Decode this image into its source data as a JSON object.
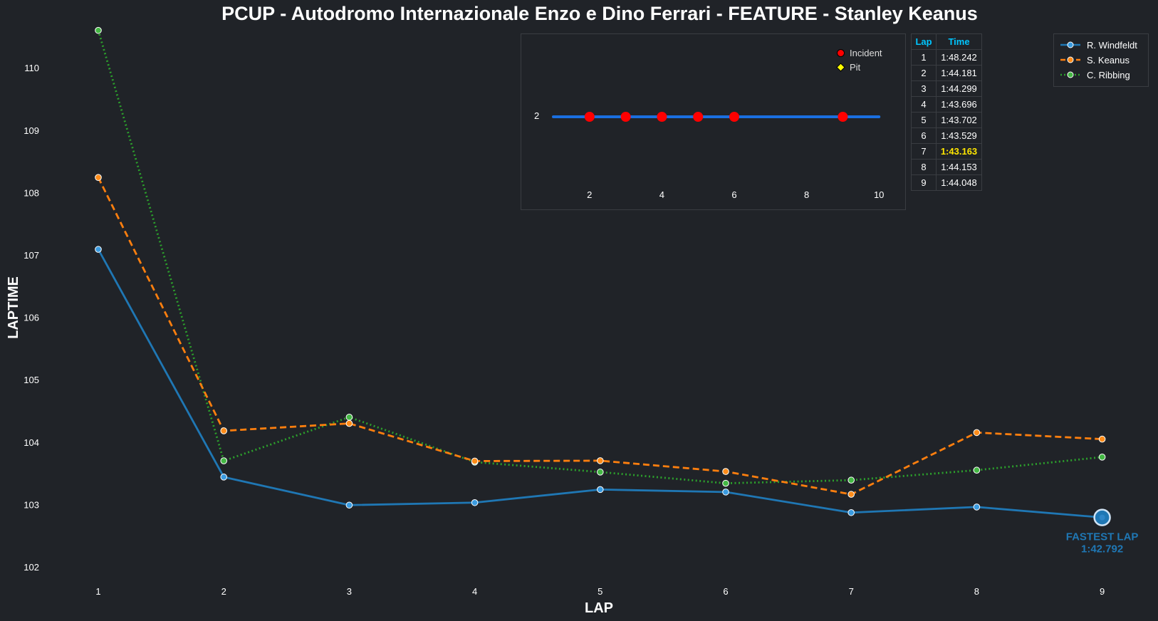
{
  "chart_data": {
    "type": "line",
    "title": "PCUP - Autodromo Internazionale Enzo e Dino Ferrari - FEATURE - Stanley Keanus",
    "xlabel": "LAP",
    "ylabel": "LAPTIME",
    "x": [
      1,
      2,
      3,
      4,
      5,
      6,
      7,
      8,
      9
    ],
    "ylim": [
      101.8,
      110.6
    ],
    "yticks": [
      102,
      103,
      104,
      105,
      106,
      107,
      108,
      109,
      110
    ],
    "series": [
      {
        "name": "R. Windfeldt",
        "color": "#1f77b4",
        "dash": "solid",
        "marker_fill": "#3a9be0",
        "values": [
          107.09,
          103.44,
          102.99,
          103.03,
          103.24,
          103.2,
          102.87,
          102.96,
          102.792
        ]
      },
      {
        "name": "S. Keanus",
        "color": "#ff7f0e",
        "dash": "dashed",
        "marker_fill": "#ff8c1a",
        "values": [
          108.242,
          104.181,
          104.299,
          103.696,
          103.702,
          103.529,
          103.163,
          104.153,
          104.048
        ]
      },
      {
        "name": "C. Ribbing",
        "color": "#2ca02c",
        "dash": "dotted",
        "marker_fill": "#44b844",
        "values": [
          110.6,
          103.7,
          104.4,
          103.68,
          103.52,
          103.34,
          103.39,
          103.55,
          103.76
        ]
      }
    ],
    "fastest_lap": {
      "label": "FASTEST LAP",
      "time": "1:42.792",
      "lap": 9,
      "value": 102.792,
      "color": "#1f77b4"
    },
    "legend_position": "top-right",
    "grid": false
  },
  "inset": {
    "y_tick": "2",
    "x_ticks": [
      2,
      4,
      6,
      8,
      10
    ],
    "xlim": [
      0.9,
      10.4
    ],
    "line_start": 1,
    "line_end": 10,
    "incidents": [
      2,
      3,
      4,
      5,
      6,
      9
    ],
    "line_color": "#1a6fe0",
    "incident_color": "#ff0000",
    "pit_color": "#ffff00",
    "legend": {
      "incident": "Incident",
      "pit": "Pit"
    }
  },
  "table": {
    "headers": {
      "lap": "Lap",
      "time": "Time"
    },
    "rows": [
      {
        "lap": "1",
        "time": "1:48.242"
      },
      {
        "lap": "2",
        "time": "1:44.181"
      },
      {
        "lap": "3",
        "time": "1:44.299"
      },
      {
        "lap": "4",
        "time": "1:43.696"
      },
      {
        "lap": "5",
        "time": "1:43.702"
      },
      {
        "lap": "6",
        "time": "1:43.529"
      },
      {
        "lap": "7",
        "time": "1:43.163"
      },
      {
        "lap": "8",
        "time": "1:44.153"
      },
      {
        "lap": "9",
        "time": "1:44.048"
      }
    ],
    "best_row": 6
  }
}
